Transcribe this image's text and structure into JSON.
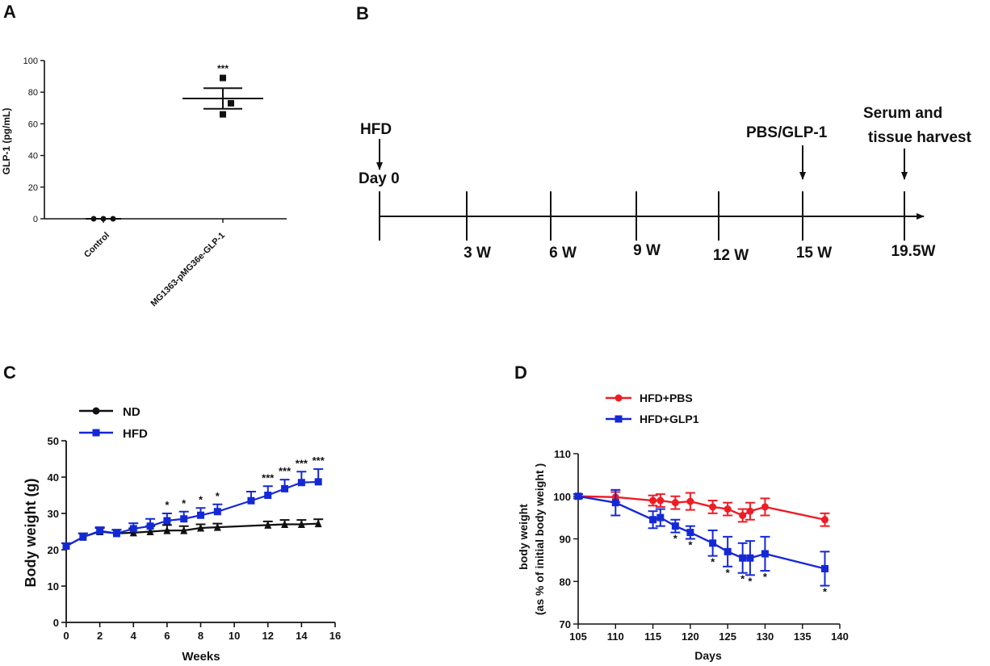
{
  "panels": {
    "A": {
      "letter": "A"
    },
    "B": {
      "letter": "B"
    },
    "C": {
      "letter": "C"
    },
    "D": {
      "letter": "D"
    }
  },
  "colors": {
    "red": "#ee1c25",
    "blue": "#1428d6",
    "black": "#111111"
  },
  "chart_data": [
    {
      "id": "A",
      "type": "scatter",
      "title": "",
      "xlabel": "",
      "ylabel": "GLP-1  (pg/mL)",
      "ylim": [
        0,
        100
      ],
      "yticks": [
        0,
        20,
        40,
        60,
        80,
        100
      ],
      "categories": [
        "Control",
        "MG1363-pMG36e-GLP-1"
      ],
      "series": [
        {
          "name": "Control",
          "points": [
            0,
            0,
            0
          ],
          "mean": 0,
          "sem": 0
        },
        {
          "name": "MG1363-pMG36e-GLP-1",
          "points": [
            89,
            73,
            66
          ],
          "mean": 76,
          "sem": 6.5
        }
      ],
      "annotations": [
        "***"
      ]
    },
    {
      "id": "C",
      "type": "line",
      "xlabel": "Weeks",
      "ylabel": "Body weight  (g)",
      "xlim": [
        0,
        16
      ],
      "ylim": [
        0,
        50
      ],
      "xticks": [
        0,
        2,
        4,
        6,
        8,
        10,
        12,
        14,
        16
      ],
      "yticks": [
        0,
        10,
        20,
        30,
        40,
        50
      ],
      "series": [
        {
          "name": "ND",
          "color": "#111111",
          "marker": "circle",
          "x": [
            0,
            1,
            2,
            3,
            4,
            5,
            6,
            7,
            8,
            9,
            12,
            13,
            14,
            15
          ],
          "y": [
            21,
            23.5,
            25,
            24.5,
            24.7,
            25,
            25.3,
            25.3,
            26,
            26.2,
            26.8,
            27,
            27,
            27.2
          ],
          "err": [
            0.8,
            1,
            1,
            1,
            1.2,
            1.5,
            1.5,
            1.2,
            1,
            1,
            1,
            1.2,
            1.2,
            1.2
          ]
        },
        {
          "name": "HFD",
          "color": "#1428d6",
          "marker": "square",
          "x": [
            0,
            1,
            2,
            3,
            4,
            5,
            6,
            7,
            8,
            9,
            11,
            12,
            13,
            14,
            15
          ],
          "y": [
            21,
            23.5,
            25.2,
            24.5,
            25.8,
            26.5,
            28,
            28.5,
            29.5,
            30.5,
            33.5,
            35,
            36.8,
            38.5,
            38.7
          ],
          "err": [
            0.8,
            1,
            1,
            1,
            1.5,
            2,
            2,
            2,
            2,
            2,
            2.5,
            2.5,
            2.5,
            3,
            3.5
          ]
        }
      ],
      "stars": [
        {
          "x": 6,
          "label": "*"
        },
        {
          "x": 7,
          "label": "*"
        },
        {
          "x": 8,
          "label": "*"
        },
        {
          "x": 9,
          "label": "*"
        },
        {
          "x": 12,
          "label": "***"
        },
        {
          "x": 13,
          "label": "***"
        },
        {
          "x": 14,
          "label": "***"
        },
        {
          "x": 15,
          "label": "***"
        }
      ]
    },
    {
      "id": "D",
      "type": "line",
      "xlabel": "Days",
      "ylabel_line1": "body weight",
      "ylabel_line2": "(as % of initial body weight )",
      "xlim": [
        105,
        140
      ],
      "ylim": [
        70,
        110
      ],
      "xticks": [
        105,
        110,
        115,
        120,
        125,
        130,
        135,
        140
      ],
      "yticks": [
        70,
        80,
        90,
        100,
        110
      ],
      "series": [
        {
          "name": "HFD+PBS",
          "color": "#ee1c25",
          "marker": "circle",
          "x": [
            105,
            110,
            115,
            116,
            118,
            120,
            123,
            125,
            127,
            128,
            130,
            138
          ],
          "y": [
            100,
            99.8,
            99,
            99,
            98.5,
            98.8,
            97.5,
            97,
            95.5,
            96.5,
            97.5,
            94.5
          ],
          "err": [
            0.5,
            1.2,
            1.2,
            1.5,
            1.5,
            2,
            1.5,
            1.5,
            1.5,
            2,
            2,
            1.5
          ]
        },
        {
          "name": "HFD+GLP1",
          "color": "#1428d6",
          "marker": "square",
          "x": [
            105,
            110,
            115,
            116,
            118,
            120,
            123,
            125,
            127,
            128,
            130,
            138
          ],
          "y": [
            100,
            98.5,
            94.5,
            95,
            93,
            91.5,
            89,
            87,
            85.5,
            85.5,
            86.5,
            83
          ],
          "err": [
            0.5,
            3,
            2,
            2,
            1.5,
            1.5,
            3,
            3.5,
            3.5,
            4,
            4,
            4
          ]
        }
      ],
      "stars": [
        {
          "x": 118,
          "label": "*"
        },
        {
          "x": 120,
          "label": "*"
        },
        {
          "x": 123,
          "label": "*"
        },
        {
          "x": 125,
          "label": "*"
        },
        {
          "x": 127,
          "label": "*"
        },
        {
          "x": 128,
          "label": "*"
        },
        {
          "x": 130,
          "label": "*"
        },
        {
          "x": 138,
          "label": "*"
        }
      ]
    }
  ],
  "timeline": {
    "start_label_1": "HFD",
    "start_label_2": "Day 0",
    "ticks": [
      "3 W",
      "6 W",
      "9 W",
      "12 W",
      "15 W",
      "19.5W"
    ],
    "event_pbs": "PBS/GLP-1",
    "event_harvest_1": "Serum and",
    "event_harvest_2": "tissue harvest"
  }
}
